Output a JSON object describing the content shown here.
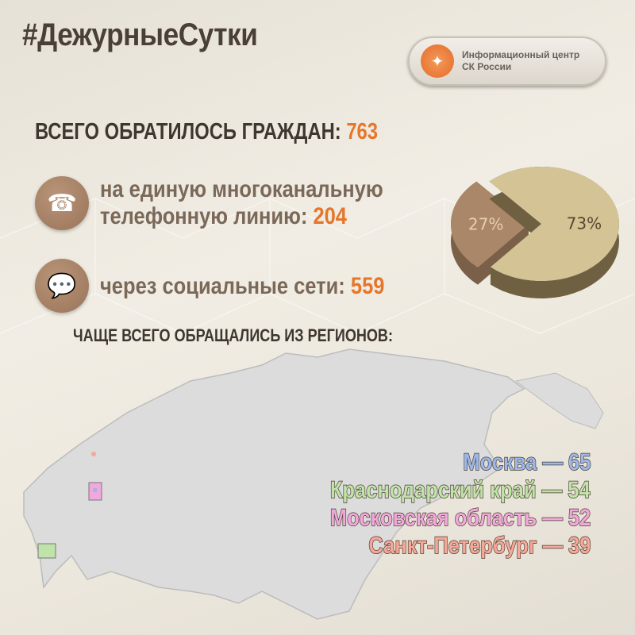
{
  "hashtag": "#ДежурныеСутки",
  "badge": {
    "line1": "Информационный центр",
    "line2": "СК России",
    "logo_icon": "sk-emblem-icon"
  },
  "total": {
    "label": "ВСЕГО ОБРАТИЛОСЬ ГРАЖДАН:",
    "value": "763"
  },
  "phone": {
    "line1": "на единую многоканальную",
    "line2": "телефонную линию:",
    "value": "204",
    "icon": "phone-icon"
  },
  "social": {
    "label": "через социальные сети:",
    "value": "559",
    "icon": "chat-bubble-icon"
  },
  "regions_heading": "ЧАЩЕ ВСЕГО ОБРАЩАЛИСЬ ИЗ РЕГИОНОВ:",
  "regions": [
    {
      "name": "Москва",
      "value": "65",
      "color": "#9bb8e8"
    },
    {
      "name": "Краснодарский край",
      "value": "54",
      "color": "#bfe3a8"
    },
    {
      "name": "Московская область",
      "value": "52",
      "color": "#f3a8dc"
    },
    {
      "name": "Санкт-Петербург",
      "value": "39",
      "color": "#f5a898"
    }
  ],
  "separator": "—",
  "colors": {
    "accent": "#e5762a",
    "text": "#3f3630"
  },
  "chart_data": {
    "type": "pie",
    "slices": [
      {
        "label": "27%",
        "value": 27,
        "color": "#a98768"
      },
      {
        "label": "73%",
        "value": 73,
        "color": "#d4c394"
      }
    ]
  }
}
